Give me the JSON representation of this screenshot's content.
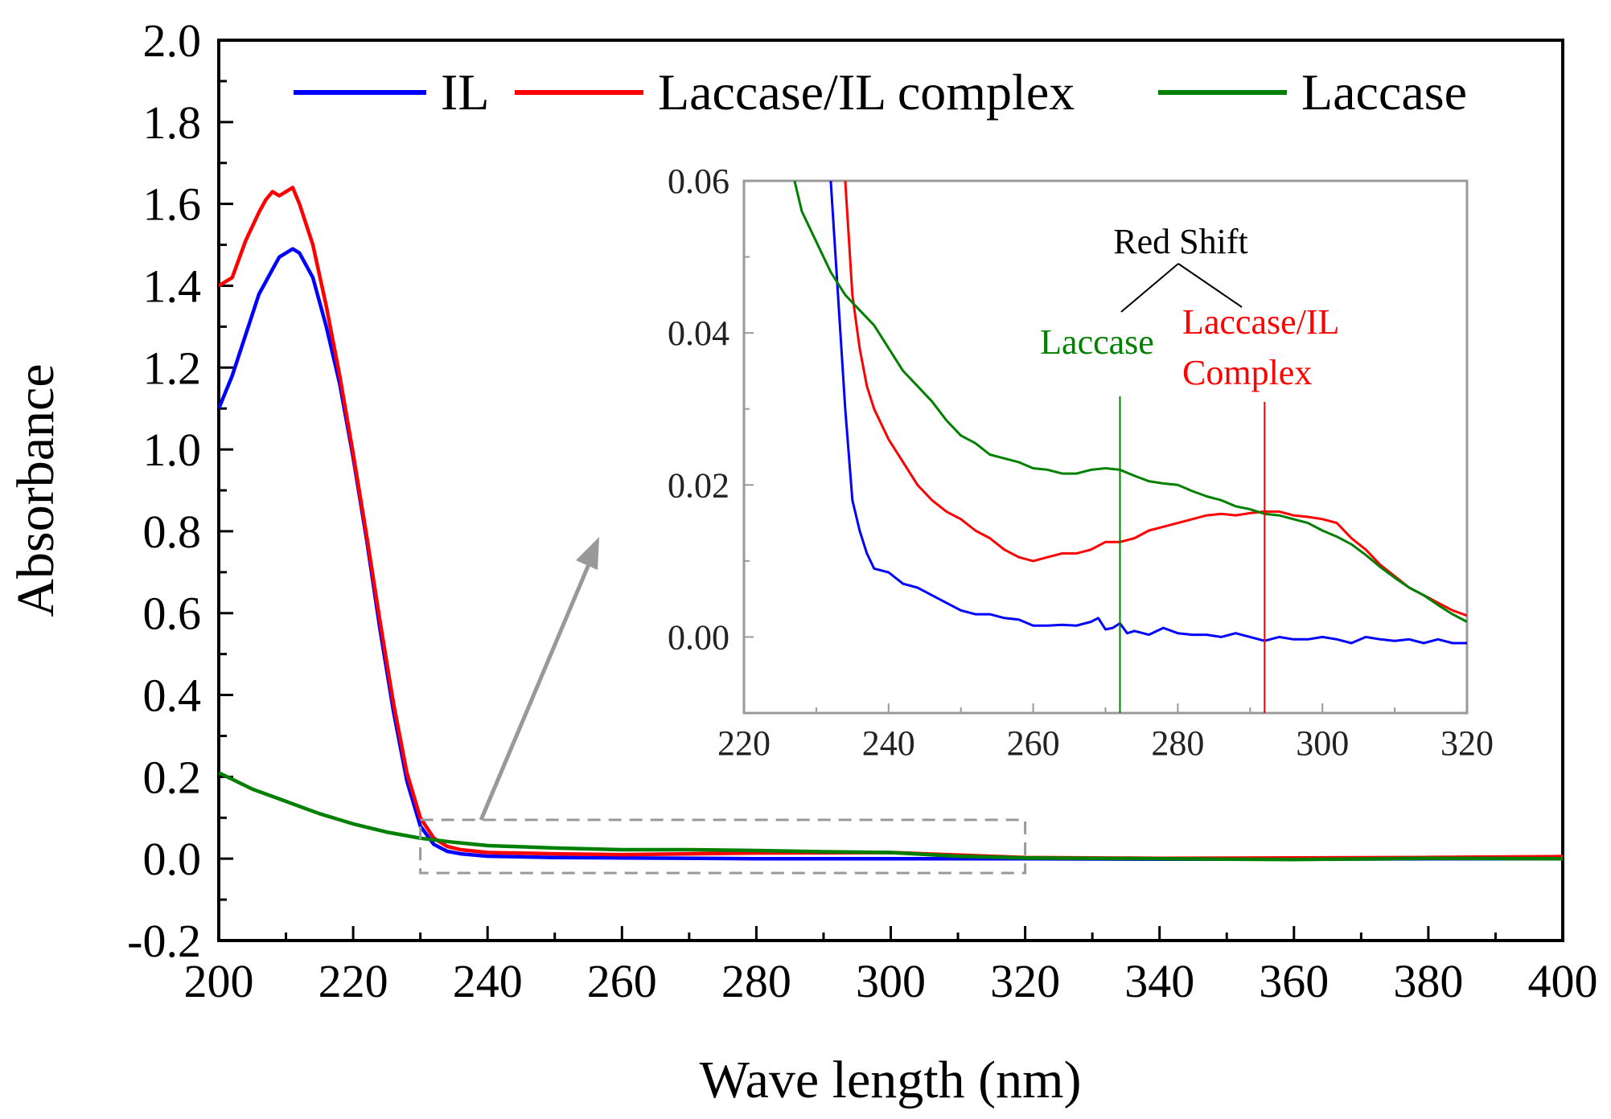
{
  "chart_data": [
    {
      "id": "main",
      "type": "line",
      "title": "",
      "xlabel": "Wave length (nm)",
      "ylabel": "Absorbance",
      "xlim": [
        200,
        400
      ],
      "ylim": [
        -0.2,
        2.0
      ],
      "xticks": [
        200,
        220,
        240,
        260,
        280,
        300,
        320,
        340,
        360,
        380,
        400
      ],
      "yticks": [
        -0.2,
        0.0,
        0.2,
        0.4,
        0.6,
        0.8,
        1.0,
        1.2,
        1.4,
        1.6,
        1.8,
        2.0
      ],
      "xtick_labels": [
        "200",
        "220",
        "240",
        "260",
        "280",
        "300",
        "320",
        "340",
        "360",
        "380",
        "400"
      ],
      "ytick_labels": [
        "-0.2",
        "0.0",
        "0.2",
        "0.4",
        "0.6",
        "0.8",
        "1.0",
        "1.2",
        "1.4",
        "1.6",
        "1.8",
        "2.0"
      ],
      "legend": {
        "placement": "top",
        "entries": [
          "IL",
          "Laccase/IL complex",
          "Laccase"
        ]
      },
      "zoom_region": {
        "x": [
          230,
          320
        ],
        "y": [
          -0.035,
          0.095
        ],
        "line_color": "#999999"
      },
      "series": [
        {
          "name": "IL",
          "color": "#0000ff",
          "x": [
            200,
            202,
            204,
            206,
            207,
            208,
            209,
            210,
            211,
            212,
            214,
            216,
            218,
            220,
            222,
            224,
            226,
            228,
            230,
            232,
            234,
            236,
            240,
            250,
            260,
            280,
            300,
            320,
            340,
            360,
            380,
            400
          ],
          "y": [
            1.1,
            1.18,
            1.28,
            1.38,
            1.41,
            1.44,
            1.47,
            1.48,
            1.49,
            1.48,
            1.42,
            1.3,
            1.16,
            0.98,
            0.78,
            0.56,
            0.36,
            0.19,
            0.08,
            0.035,
            0.018,
            0.012,
            0.006,
            0.003,
            0.002,
            0.0,
            0.0,
            0.0,
            -0.001,
            -0.001,
            0.0,
            0.0
          ]
        },
        {
          "name": "Laccase/IL complex",
          "color": "#ff0000",
          "x": [
            200,
            202,
            204,
            206,
            207,
            208,
            209,
            210,
            211,
            212,
            214,
            216,
            218,
            220,
            222,
            224,
            226,
            228,
            230,
            232,
            234,
            236,
            240,
            250,
            260,
            280,
            300,
            320,
            340,
            360,
            380,
            400
          ],
          "y": [
            1.4,
            1.42,
            1.51,
            1.58,
            1.61,
            1.63,
            1.62,
            1.63,
            1.64,
            1.6,
            1.5,
            1.35,
            1.18,
            0.99,
            0.79,
            0.58,
            0.38,
            0.21,
            0.1,
            0.05,
            0.03,
            0.022,
            0.015,
            0.012,
            0.01,
            0.014,
            0.015,
            0.003,
            0.001,
            0.002,
            0.003,
            0.005
          ]
        },
        {
          "name": "Laccase",
          "color": "#008000",
          "x": [
            200,
            205,
            210,
            215,
            220,
            225,
            230,
            235,
            240,
            250,
            260,
            270,
            280,
            290,
            300,
            310,
            320,
            340,
            360,
            380,
            400
          ],
          "y": [
            0.21,
            0.17,
            0.14,
            0.11,
            0.085,
            0.065,
            0.05,
            0.04,
            0.032,
            0.026,
            0.022,
            0.022,
            0.02,
            0.017,
            0.015,
            0.006,
            0.002,
            0.0,
            -0.002,
            0.001,
            0.0
          ]
        }
      ]
    },
    {
      "id": "inset",
      "type": "line",
      "title": "",
      "xlabel": "",
      "ylabel": "",
      "xlim": [
        220,
        320
      ],
      "ylim": [
        -0.01,
        0.06
      ],
      "xticks": [
        220,
        240,
        260,
        280,
        300,
        320
      ],
      "yticks": [
        0.0,
        0.02,
        0.04,
        0.06
      ],
      "xtick_labels": [
        "220",
        "240",
        "260",
        "280",
        "300",
        "320"
      ],
      "ytick_labels": [
        "0.00",
        "0.02",
        "0.04",
        "0.06"
      ],
      "annotations": {
        "heading": "Red Shift",
        "label_laccase": "Laccase",
        "label_complex_line1": "Laccase/IL",
        "label_complex_line2": "Complex",
        "laccase_peak_x": 272,
        "complex_peak_x": 292
      },
      "series": [
        {
          "name": "IL",
          "color": "#0000ff",
          "x": [
            232,
            233,
            234,
            235,
            236,
            237,
            238,
            240,
            242,
            244,
            246,
            248,
            250,
            252,
            254,
            256,
            258,
            260,
            262,
            264,
            266,
            268,
            269,
            270,
            271,
            272,
            273,
            274,
            276,
            278,
            280,
            282,
            284,
            286,
            288,
            290,
            292,
            294,
            296,
            298,
            300,
            302,
            304,
            306,
            308,
            310,
            312,
            314,
            316,
            318,
            320
          ],
          "y": [
            0.06,
            0.045,
            0.03,
            0.018,
            0.014,
            0.011,
            0.009,
            0.0085,
            0.007,
            0.0065,
            0.0055,
            0.0045,
            0.0035,
            0.003,
            0.003,
            0.0025,
            0.0023,
            0.0015,
            0.0015,
            0.0016,
            0.0015,
            0.002,
            0.0025,
            0.001,
            0.0012,
            0.0018,
            0.0005,
            0.0008,
            0.0003,
            0.0012,
            0.0005,
            0.0003,
            0.0003,
            0.0,
            0.0005,
            0.0,
            -0.0005,
            0.0,
            -0.0003,
            -0.0003,
            0.0,
            -0.0003,
            -0.0008,
            0.0,
            -0.0003,
            -0.0005,
            -0.0003,
            -0.0008,
            -0.0003,
            -0.0008,
            -0.0008
          ]
        },
        {
          "name": "Laccase/IL complex",
          "color": "#ff0000",
          "x": [
            234,
            235,
            236,
            237,
            238,
            240,
            242,
            244,
            246,
            248,
            250,
            252,
            254,
            256,
            258,
            260,
            262,
            264,
            266,
            268,
            270,
            272,
            274,
            276,
            278,
            280,
            282,
            284,
            286,
            288,
            290,
            292,
            294,
            296,
            298,
            300,
            302,
            304,
            306,
            308,
            310,
            312,
            314,
            316,
            318,
            320
          ],
          "y": [
            0.06,
            0.045,
            0.038,
            0.033,
            0.03,
            0.026,
            0.023,
            0.02,
            0.018,
            0.0165,
            0.0155,
            0.014,
            0.013,
            0.0115,
            0.0105,
            0.01,
            0.0105,
            0.011,
            0.011,
            0.0115,
            0.0125,
            0.0125,
            0.013,
            0.014,
            0.0145,
            0.015,
            0.0155,
            0.016,
            0.0162,
            0.016,
            0.0163,
            0.0165,
            0.0165,
            0.016,
            0.0158,
            0.0155,
            0.015,
            0.013,
            0.0115,
            0.0095,
            0.008,
            0.0065,
            0.0055,
            0.0045,
            0.0035,
            0.0028
          ]
        },
        {
          "name": "Laccase",
          "color": "#008000",
          "x": [
            227,
            228,
            230,
            232,
            234,
            236,
            238,
            240,
            242,
            244,
            246,
            248,
            250,
            252,
            254,
            256,
            258,
            260,
            262,
            264,
            266,
            268,
            270,
            272,
            274,
            276,
            278,
            280,
            282,
            284,
            286,
            288,
            290,
            292,
            294,
            296,
            298,
            300,
            302,
            304,
            306,
            308,
            310,
            312,
            314,
            316,
            318,
            320
          ],
          "y": [
            0.06,
            0.056,
            0.052,
            0.048,
            0.045,
            0.043,
            0.041,
            0.038,
            0.035,
            0.033,
            0.031,
            0.0285,
            0.0265,
            0.0255,
            0.024,
            0.0235,
            0.023,
            0.0222,
            0.022,
            0.0215,
            0.0215,
            0.022,
            0.0222,
            0.022,
            0.0212,
            0.0205,
            0.0202,
            0.02,
            0.0192,
            0.0185,
            0.018,
            0.0172,
            0.0168,
            0.0162,
            0.016,
            0.0155,
            0.015,
            0.014,
            0.0132,
            0.0122,
            0.0108,
            0.0092,
            0.0078,
            0.0065,
            0.0055,
            0.0042,
            0.003,
            0.002
          ]
        }
      ]
    }
  ]
}
